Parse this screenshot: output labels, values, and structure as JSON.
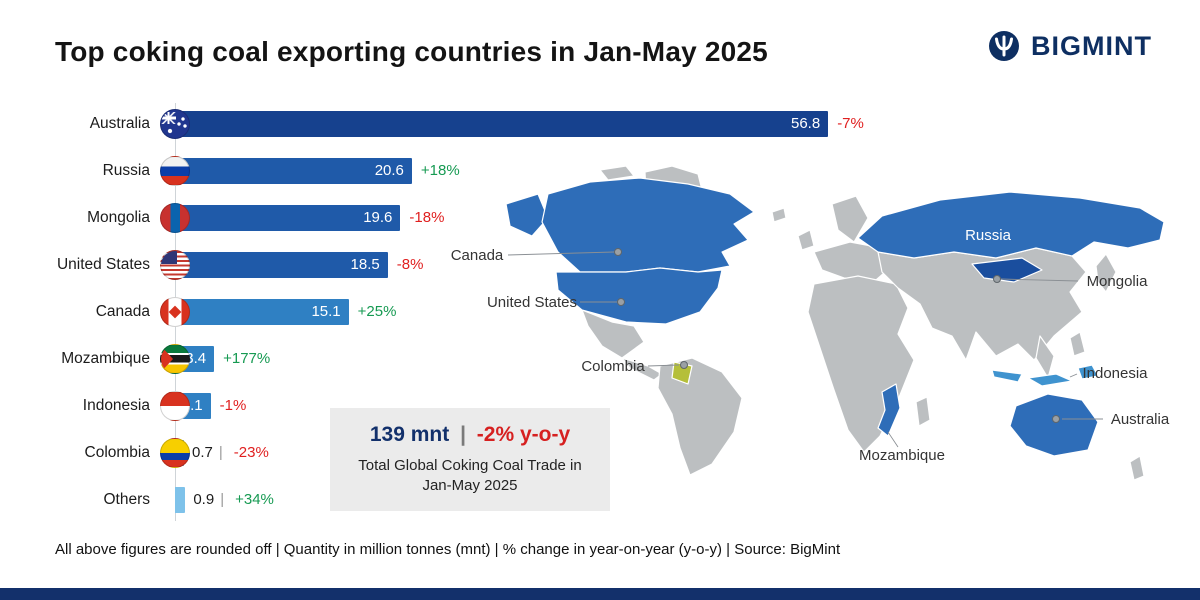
{
  "header": {
    "title": "Top coking coal exporting countries in Jan-May 2025",
    "brand": "BIGMINT"
  },
  "chart_data": {
    "type": "bar",
    "orientation": "horizontal",
    "title": "Top coking coal exporting countries in Jan-May 2025",
    "unit": "million tonnes (mnt)",
    "xlabel": "",
    "ylabel": "",
    "xlim": [
      0,
      60
    ],
    "categories": [
      "Australia",
      "Russia",
      "Mongolia",
      "United States",
      "Canada",
      "Mozambique",
      "Indonesia",
      "Colombia",
      "Others"
    ],
    "values": [
      56.8,
      20.6,
      19.6,
      18.5,
      15.1,
      3.4,
      3.1,
      0.7,
      0.9
    ],
    "yoy_change": [
      "-7%",
      "+18%",
      "-18%",
      "-8%",
      "+25%",
      "+177%",
      "-1%",
      "-23%",
      "+34%"
    ],
    "separator": "|"
  },
  "callout": {
    "total": "139 mnt",
    "separator": "|",
    "yoy": "-2% y-o-y",
    "caption": "Total Global Coking Coal Trade in Jan-May 2025"
  },
  "map": {
    "highlighted": [
      "Canada",
      "United States",
      "Colombia",
      "Russia",
      "Mongolia",
      "Indonesia",
      "Australia",
      "Mozambique"
    ],
    "labels": {
      "canada": "Canada",
      "united_states": "United States",
      "colombia": "Colombia",
      "russia": "Russia",
      "mongolia": "Mongolia",
      "indonesia": "Indonesia",
      "australia": "Australia",
      "mozambique": "Mozambique"
    }
  },
  "footer": {
    "note": "All above figures are rounded off | Quantity in million tonnes (mnt) | % change in year-on-year (y-o-y) | Source: BigMint"
  },
  "colors": {
    "bar_dark": "#16418e",
    "bar_mid": "#1f5aa9",
    "bar_light": "#2f80c3",
    "bar_pale": "#7ec2ea",
    "negative": "#e01f1f",
    "positive": "#169a52",
    "map_highlight": "#2e6db8",
    "map_land": "#bcbfc1",
    "callout_bg": "#ebebeb"
  }
}
